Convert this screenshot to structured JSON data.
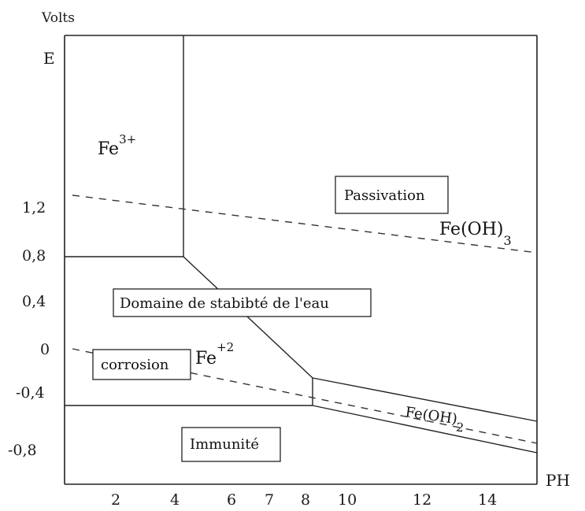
{
  "axes": {
    "y_unit": "Volts",
    "y_label": "E",
    "x_label": "PH",
    "y_ticks": [
      "1,2",
      "0,8",
      "0,4",
      "0",
      "-0,4",
      "-0,8"
    ],
    "x_ticks": [
      "2",
      "4",
      "6",
      "7",
      "8",
      "10",
      "12",
      "14"
    ]
  },
  "species": {
    "fe3": {
      "base": "Fe",
      "charge": "3+"
    },
    "fe2": {
      "base": "Fe",
      "charge": "+2"
    },
    "feoh3": {
      "base": "Fe(OH)",
      "sub": "3"
    },
    "feoh2": {
      "base": "Fe(OH)",
      "sub": "2"
    }
  },
  "regions": {
    "passivation": "Passivation",
    "water_stability": "Domaine de stabibté de l'eau",
    "corrosion": "corrosion",
    "immunity": "Immunité"
  }
}
